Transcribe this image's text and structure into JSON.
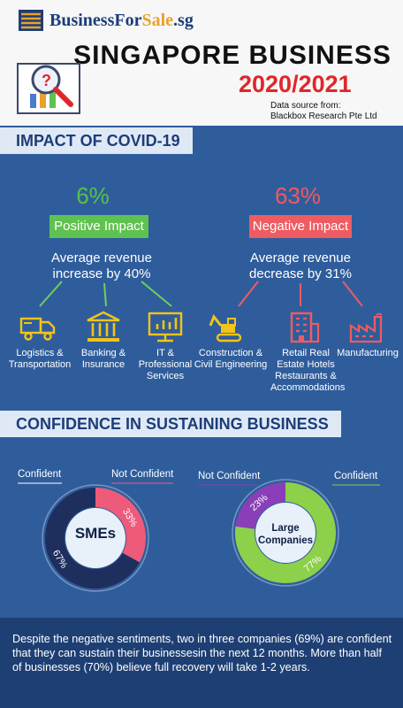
{
  "header": {
    "brand_main": "BusinessFor",
    "brand_accent": "Sale",
    "brand_suffix": ".sg",
    "title_line1": "SINGAPORE BUSINESS",
    "title_line2": "2020/2021",
    "data_source_label": "Data source from:",
    "data_source_value": "Blackbox Research Pte Ltd"
  },
  "covid": {
    "heading": "IMPACT OF COVID-19",
    "positive": {
      "percent": "6%",
      "label": "Positive Impact",
      "desc_line1": "Average revenue",
      "desc_line2": "increase by 40%",
      "industries": [
        {
          "icon": "truck-icon",
          "line1": "Logistics &",
          "line2": "Transportation",
          "line3": ""
        },
        {
          "icon": "bank-icon",
          "line1": "Banking &",
          "line2": "Insurance",
          "line3": ""
        },
        {
          "icon": "monitor-chart-icon",
          "line1": "IT &",
          "line2": "Professional",
          "line3": "Services"
        }
      ]
    },
    "negative": {
      "percent": "63%",
      "label": "Negative Impact",
      "desc_line1": "Average revenue",
      "desc_line2": "decrease by 31%",
      "industries": [
        {
          "icon": "excavator-icon",
          "line1": "Construction &",
          "line2": "Civil Engineering",
          "line3": "",
          "line4": ""
        },
        {
          "icon": "building-icon",
          "line1": "Retail Real",
          "line2": "Estate Hotels",
          "line3": "Restaurants &",
          "line4": "Accommodations"
        },
        {
          "icon": "factory-icon",
          "line1": "Manufacturing",
          "line2": "",
          "line3": "",
          "line4": ""
        }
      ]
    }
  },
  "confidence": {
    "heading": "CONFIDENCE IN SUSTAINING BUSINESS",
    "smes": {
      "center": "SMEs",
      "confident_label": "Confident",
      "not_confident_label": "Not Confident",
      "confident_value": "67%",
      "not_confident_value": "33%",
      "confident_color": "#1e2f5e",
      "not_confident_color": "#ee5a7a"
    },
    "large": {
      "center_line1": "Large",
      "center_line2": "Companies",
      "confident_label": "Confident",
      "not_confident_label": "Not Confident",
      "confident_value": "77%",
      "not_confident_value": "23%",
      "confident_color": "#8dd04a",
      "not_confident_color": "#8a3fb8"
    }
  },
  "chart_data": [
    {
      "type": "pie",
      "title": "SMEs",
      "categories": [
        "Confident",
        "Not Confident"
      ],
      "values": [
        67,
        33
      ]
    },
    {
      "type": "pie",
      "title": "Large Companies",
      "categories": [
        "Confident",
        "Not Confident"
      ],
      "values": [
        77,
        23
      ]
    }
  ],
  "footer": {
    "text": "Despite the negative sentiments, two in three companies (69%) are confident that they can sustain their businessesin the next 12 months. More than half of businesses (70%) believe full recovery will take 1-2 years."
  }
}
